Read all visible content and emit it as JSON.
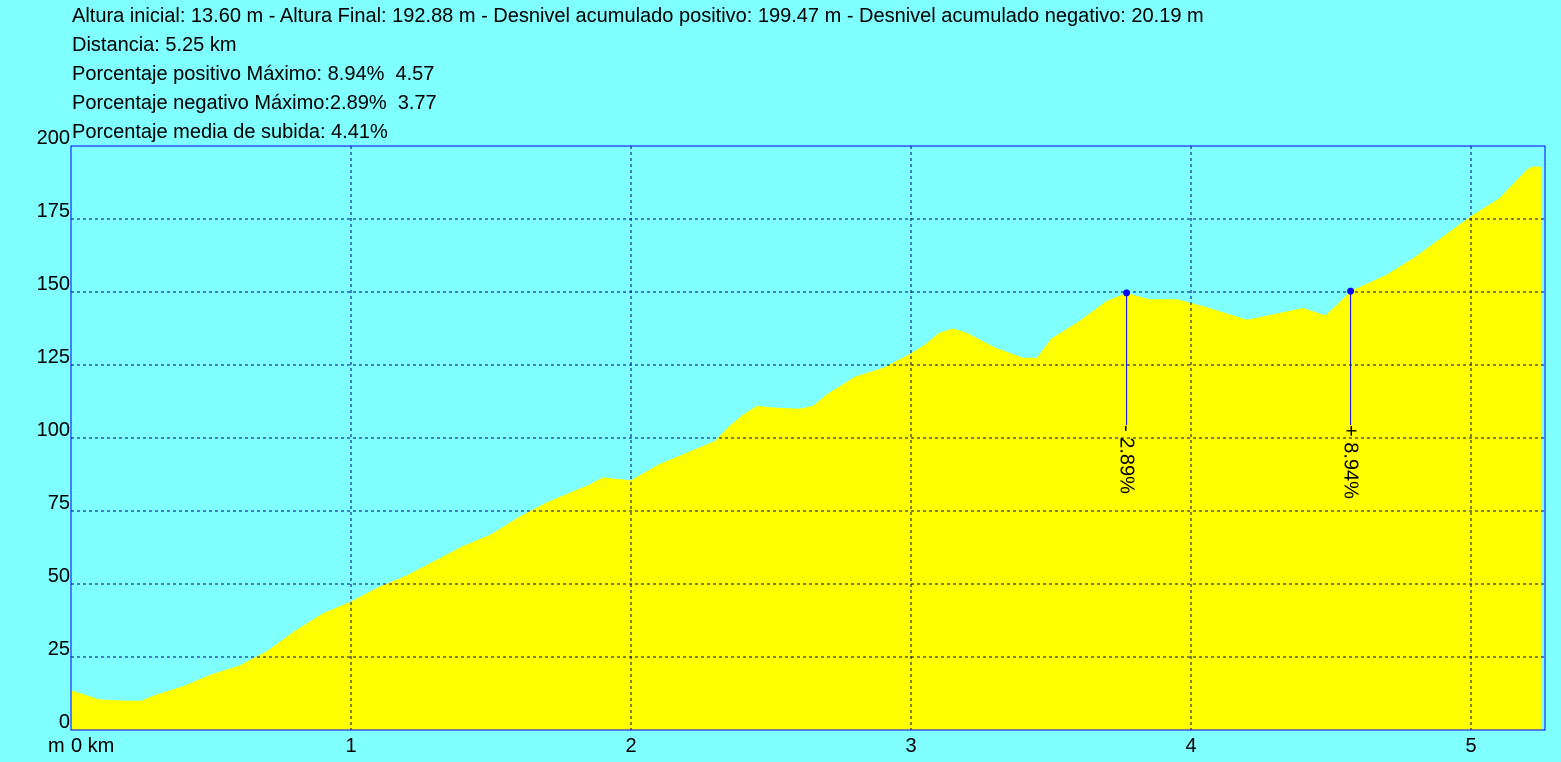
{
  "chart_data": {
    "type": "area",
    "header_lines": [
      "Altura inicial: 13.60 m - Altura Final: 192.88 m - Desnivel acumulado positivo: 199.47 m - Desnivel acumulado negativo: 20.19 m",
      "Distancia: 5.25 km",
      "Porcentaje positivo Máximo: 8.94%  4.57",
      "Porcentaje negativo Máximo:2.89%  3.77",
      "Porcentaje media de subida: 4.41%"
    ],
    "y_label": "m",
    "x": [
      0,
      0.1,
      0.2,
      0.25,
      0.3,
      0.4,
      0.5,
      0.6,
      0.7,
      0.8,
      0.9,
      1.0,
      1.1,
      1.2,
      1.3,
      1.4,
      1.5,
      1.6,
      1.7,
      1.8,
      1.85,
      1.9,
      2.0,
      2.1,
      2.2,
      2.3,
      2.35,
      2.4,
      2.45,
      2.5,
      2.6,
      2.65,
      2.7,
      2.8,
      2.9,
      3.0,
      3.05,
      3.1,
      3.15,
      3.2,
      3.3,
      3.4,
      3.45,
      3.5,
      3.6,
      3.7,
      3.77,
      3.85,
      3.95,
      4.05,
      4.15,
      4.2,
      4.3,
      4.4,
      4.48,
      4.52,
      4.57,
      4.7,
      4.8,
      4.9,
      5.0,
      5.1,
      5.15,
      5.2,
      5.22,
      5.25
    ],
    "values": [
      13.6,
      10.5,
      10,
      10,
      12,
      15,
      19,
      22,
      27,
      34,
      40,
      44,
      49,
      53,
      58,
      63,
      67,
      73,
      78,
      82,
      84,
      86.5,
      85.5,
      91,
      95,
      99,
      104,
      108,
      111,
      110.5,
      110,
      111,
      115,
      121,
      124,
      129,
      132,
      136,
      137.5,
      136,
      131,
      127.5,
      127.5,
      134,
      140,
      147,
      149.7,
      147.5,
      147.5,
      145,
      142,
      140.5,
      142.5,
      144.5,
      142,
      145.5,
      150.3,
      156,
      162,
      169,
      176,
      182,
      187,
      192,
      193,
      192.88
    ],
    "color": "#ffff00",
    "background": "#80ffff",
    "annotations": [
      {
        "x": 3.77,
        "y": 149.7,
        "label": "- 2.89%"
      },
      {
        "x": 4.57,
        "y": 150.3,
        "label": "+ 8.94%"
      }
    ],
    "xlim": [
      0,
      5.25
    ],
    "ylim": [
      0,
      200
    ],
    "xticks": [
      {
        "value": 0,
        "label": "0 km"
      },
      1,
      2,
      3,
      4,
      5
    ],
    "yticks": [
      0,
      25,
      50,
      75,
      100,
      125,
      150,
      175,
      200
    ],
    "grid": true
  }
}
